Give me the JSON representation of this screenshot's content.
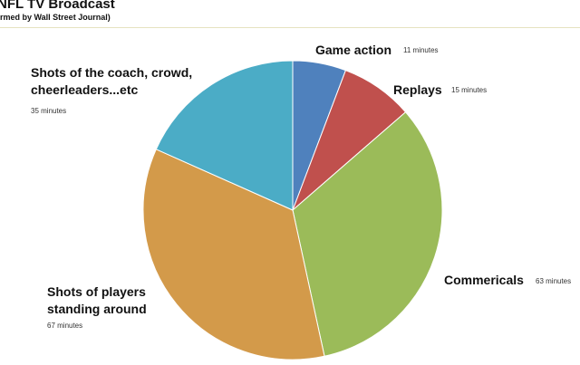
{
  "chart_data": {
    "type": "pie",
    "title": "NFL TV Broadcast",
    "subtitle": "rmed by Wall Street Journal)",
    "categories": [
      "Game action",
      "Replays",
      "Commericals",
      "Shots of players standing around",
      "Shots of the coach, crowd, cheerleaders...etc"
    ],
    "values": [
      11,
      15,
      63,
      67,
      35
    ],
    "value_labels": [
      "11 minutes",
      "15 minutes",
      "63 minutes",
      "67 minutes",
      "35 minutes"
    ],
    "colors": [
      "#4f81bd",
      "#c0504d",
      "#9bbb59",
      "#d39a4a",
      "#4bacc6"
    ]
  }
}
